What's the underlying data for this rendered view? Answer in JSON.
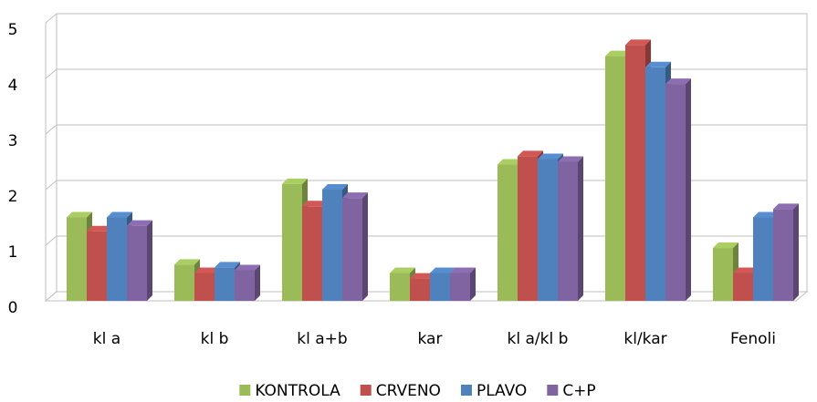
{
  "chart_data": {
    "type": "bar3d",
    "categories": [
      "kl a",
      "kl b",
      "kl a+b",
      "kar",
      "kl  a/kl b",
      "kl/kar",
      "Fenoli"
    ],
    "series": [
      {
        "name": "KONTROLA",
        "color": "#9bbb59",
        "values": [
          1.5,
          0.65,
          2.1,
          0.5,
          2.45,
          4.4,
          0.95
        ]
      },
      {
        "name": "CRVENO",
        "color": "#c0504d",
        "values": [
          1.25,
          0.5,
          1.7,
          0.4,
          2.6,
          4.6,
          0.5
        ]
      },
      {
        "name": "PLAVO",
        "color": "#4f81bd",
        "values": [
          1.5,
          0.6,
          2.0,
          0.5,
          2.55,
          4.2,
          1.5
        ]
      },
      {
        "name": "C+P",
        "color": "#8064a2",
        "values": [
          1.35,
          0.55,
          1.85,
          0.5,
          2.5,
          3.9,
          1.65
        ]
      }
    ],
    "ylim": [
      0,
      5
    ],
    "yticks": [
      0,
      1,
      2,
      3,
      4,
      5
    ],
    "grid": true,
    "legend": "bottom"
  }
}
